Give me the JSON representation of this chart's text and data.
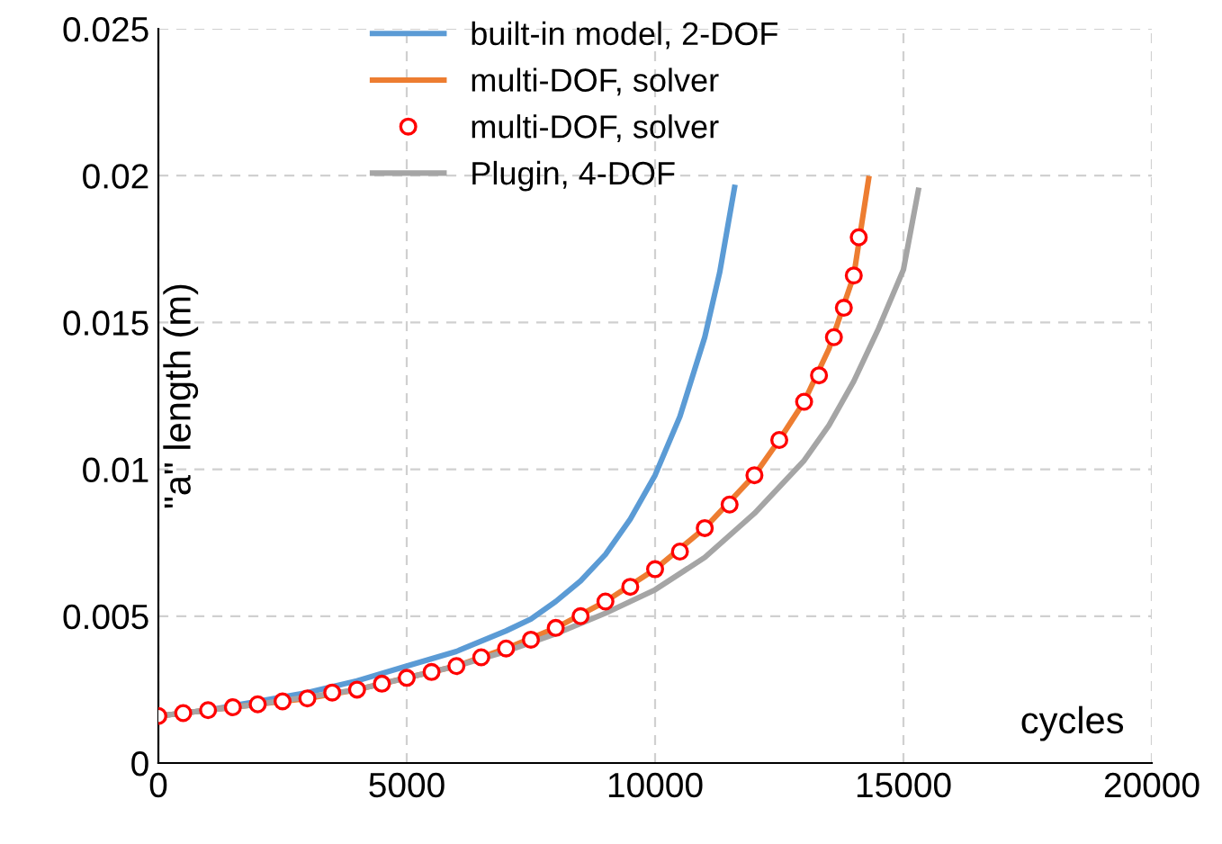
{
  "chart_data": {
    "type": "line",
    "xlabel": "cycles",
    "ylabel": "\"a\" length (m)",
    "xlim": [
      0,
      20000
    ],
    "xticks": [
      0,
      5000,
      10000,
      15000,
      20000
    ],
    "ylim": [
      0,
      0.025
    ],
    "yticks": [
      0,
      0.005,
      0.01,
      0.015,
      0.02,
      0.025
    ],
    "grid": true,
    "legend": "top",
    "line_style": "solid",
    "series": [
      {
        "name": "built-in model, 2-DOF",
        "color": "#5b9bd5",
        "x": [
          0,
          1000,
          2000,
          3000,
          4000,
          5000,
          6000,
          7000,
          7500,
          8000,
          8500,
          9000,
          9500,
          10000,
          10500,
          11000,
          11300,
          11600
        ],
        "values": [
          0.0016,
          0.0018,
          0.0021,
          0.0024,
          0.0028,
          0.0033,
          0.0038,
          0.0045,
          0.0049,
          0.0055,
          0.0062,
          0.0071,
          0.0083,
          0.0098,
          0.0118,
          0.0145,
          0.0167,
          0.0196
        ]
      },
      {
        "name": "multi-DOF, solver",
        "color": "#ed7d31",
        "x": [
          0,
          1000,
          2000,
          3000,
          4000,
          5000,
          6000,
          7000,
          8000,
          9000,
          10000,
          11000,
          12000,
          12500,
          13000,
          13500,
          14000,
          14300
        ],
        "values": [
          0.0016,
          0.0018,
          0.002,
          0.0022,
          0.0025,
          0.0029,
          0.0033,
          0.0039,
          0.0046,
          0.0055,
          0.0066,
          0.008,
          0.0098,
          0.011,
          0.0123,
          0.0141,
          0.0166,
          0.0199
        ]
      },
      {
        "name": "multi-DOF, solver",
        "type": "scatter",
        "marker": "circle",
        "color": "#ff0000",
        "x": [
          0,
          500,
          1000,
          1500,
          2000,
          2500,
          3000,
          3500,
          4000,
          4500,
          5000,
          5500,
          6000,
          6500,
          7000,
          7500,
          8000,
          8500,
          9000,
          9500,
          10000,
          10500,
          11000,
          11500,
          12000,
          12500,
          13000,
          13300,
          13600,
          13800,
          14000,
          14100
        ],
        "values": [
          0.0016,
          0.0017,
          0.0018,
          0.0019,
          0.002,
          0.0021,
          0.0022,
          0.0024,
          0.0025,
          0.0027,
          0.0029,
          0.0031,
          0.0033,
          0.0036,
          0.0039,
          0.0042,
          0.0046,
          0.005,
          0.0055,
          0.006,
          0.0066,
          0.0072,
          0.008,
          0.0088,
          0.0098,
          0.011,
          0.0123,
          0.0132,
          0.0145,
          0.0155,
          0.0166,
          0.0179
        ]
      },
      {
        "name": "Plugin, 4-DOF",
        "color": "#a5a5a5",
        "x": [
          0,
          2000,
          4000,
          6000,
          7000,
          8000,
          9000,
          10000,
          11000,
          12000,
          13000,
          13500,
          14000,
          14500,
          15000,
          15300
        ],
        "values": [
          0.0016,
          0.002,
          0.0025,
          0.0033,
          0.0038,
          0.0044,
          0.0051,
          0.0059,
          0.007,
          0.0085,
          0.0103,
          0.0115,
          0.013,
          0.0148,
          0.0168,
          0.0195
        ]
      }
    ]
  }
}
